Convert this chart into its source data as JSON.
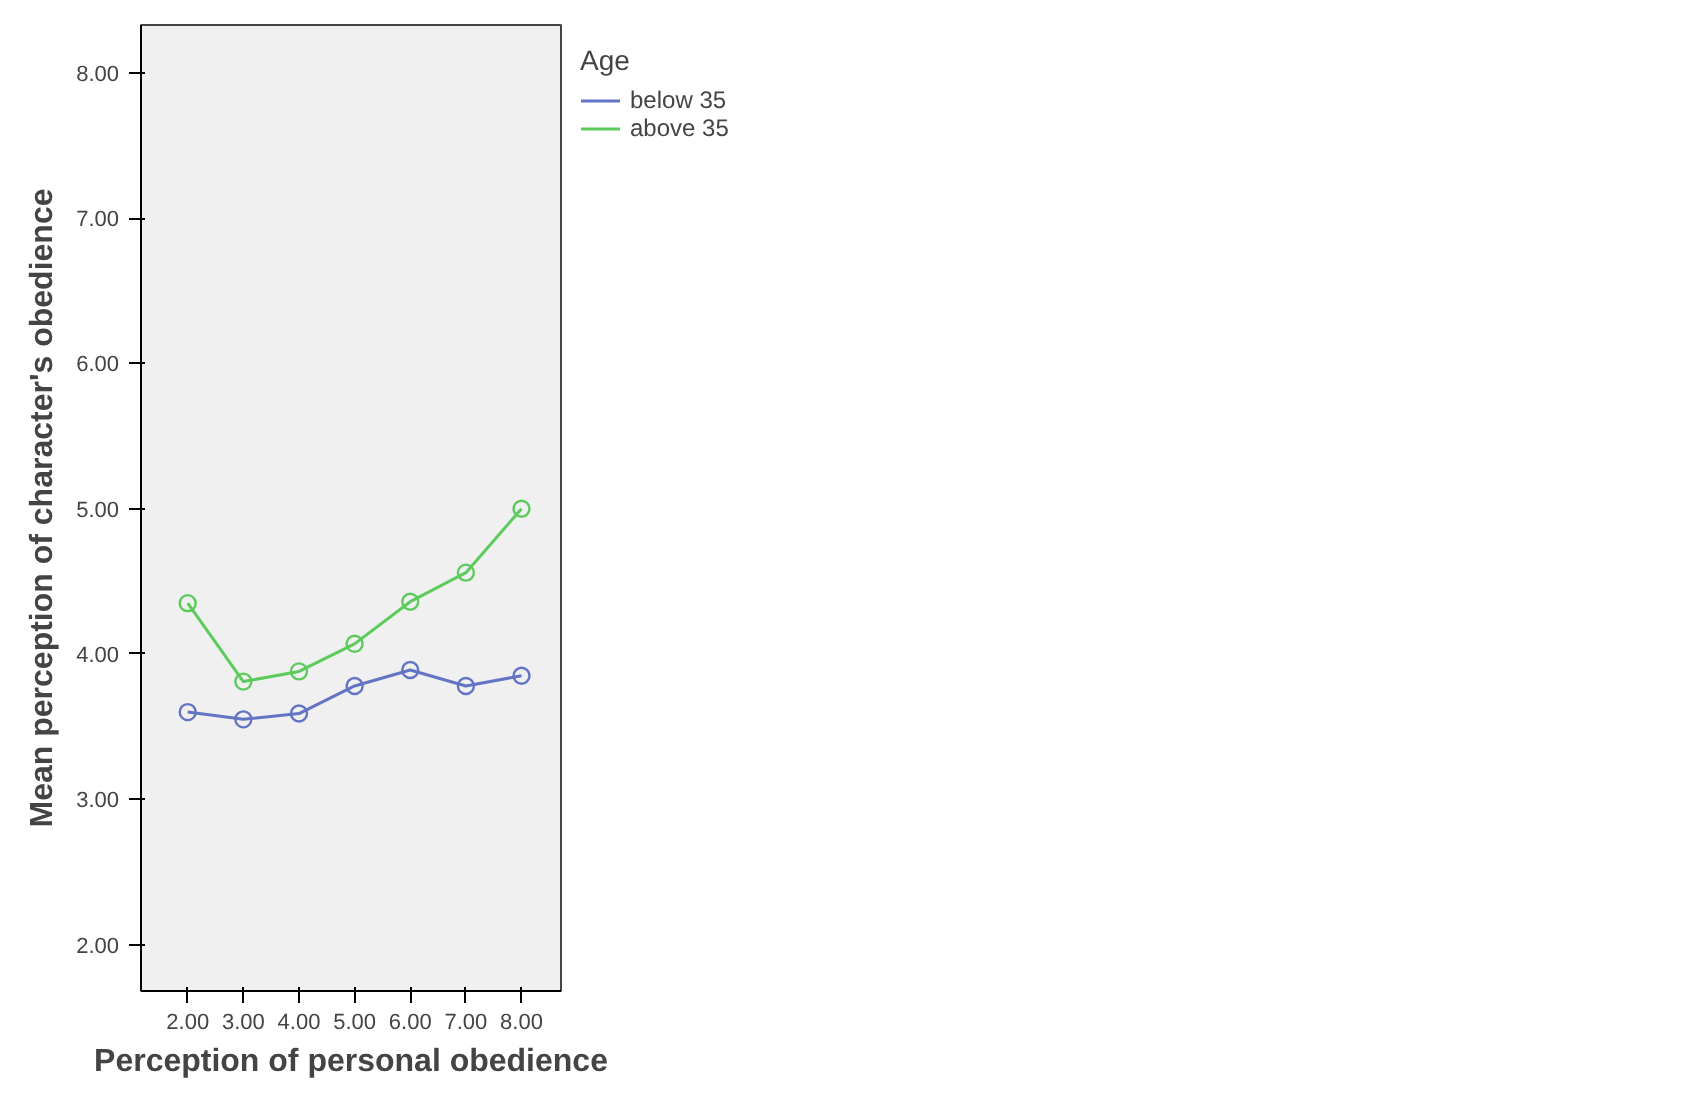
{
  "chart_data": {
    "type": "line",
    "xlabel": "Perception of personal obedience",
    "ylabel": "Mean perception of character's obedience",
    "legend_title": "Age",
    "legend": "right",
    "marker": "circle",
    "line_style": "solid",
    "grid": false,
    "x": [
      2,
      3,
      4,
      5,
      6,
      7,
      8
    ],
    "series": [
      {
        "name": "below 35",
        "color": "#6374c4",
        "values": [
          3.6,
          3.55,
          3.59,
          3.78,
          3.89,
          3.78,
          3.85
        ]
      },
      {
        "name": "above 35",
        "color": "#5ccb5c",
        "values": [
          4.35,
          3.81,
          3.88,
          4.07,
          4.36,
          4.56,
          5.0
        ]
      }
    ],
    "xlim": [
      1.16,
      8.71
    ],
    "ylim": [
      1.68,
      8.33
    ],
    "xticks": [
      {
        "value": 2,
        "label": "2.00"
      },
      {
        "value": 3,
        "label": "3.00"
      },
      {
        "value": 4,
        "label": "4.00"
      },
      {
        "value": 5,
        "label": "5.00"
      },
      {
        "value": 6,
        "label": "6.00"
      },
      {
        "value": 7,
        "label": "7.00"
      },
      {
        "value": 8,
        "label": "8.00"
      }
    ],
    "yticks": [
      {
        "value": 2,
        "label": "2.00"
      },
      {
        "value": 3,
        "label": "3.00"
      },
      {
        "value": 4,
        "label": "4.00"
      },
      {
        "value": 5,
        "label": "5.00"
      },
      {
        "value": 6,
        "label": "6.00"
      },
      {
        "value": 7,
        "label": "7.00"
      },
      {
        "value": 8,
        "label": "8.00"
      }
    ]
  }
}
